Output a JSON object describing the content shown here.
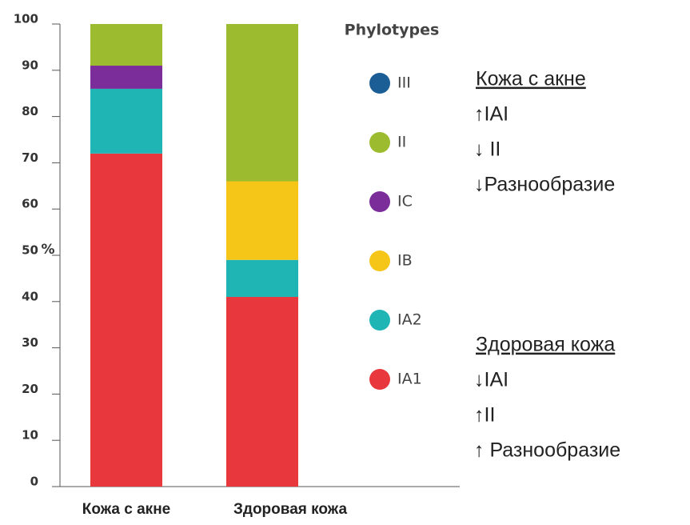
{
  "chart_data": {
    "type": "stacked_bar",
    "categories": [
      "Кожа с акне",
      "Здоровая кожа"
    ],
    "y_label": "%",
    "legend_title": "Phylotypes",
    "series": [
      {
        "name": "IA1",
        "color": "#e8383d",
        "values": [
          72,
          41
        ]
      },
      {
        "name": "IA2",
        "color": "#1fb5b5",
        "values": [
          14,
          8
        ]
      },
      {
        "name": "IB",
        "color": "#f5c518",
        "values": [
          0,
          17
        ]
      },
      {
        "name": "IC",
        "color": "#7b2d9a",
        "values": [
          5,
          0
        ]
      },
      {
        "name": "II",
        "color": "#9cbb2e",
        "values": [
          9,
          34
        ]
      },
      {
        "name": "III",
        "color": "#1b5e95",
        "values": [
          0,
          0
        ]
      }
    ],
    "ylim": [
      0,
      100
    ],
    "yticks": [
      0,
      10,
      20,
      30,
      40,
      50,
      60,
      70,
      80,
      90,
      100
    ],
    "annotations": [
      {
        "title": "Кожа с акне",
        "lines": [
          "↑IAI",
          "↓ II",
          "↓Разнообразие"
        ]
      },
      {
        "title": "Здоровая кожа",
        "lines": [
          "↓IAI",
          "↑II",
          "↑ Разнообразие"
        ]
      }
    ]
  }
}
